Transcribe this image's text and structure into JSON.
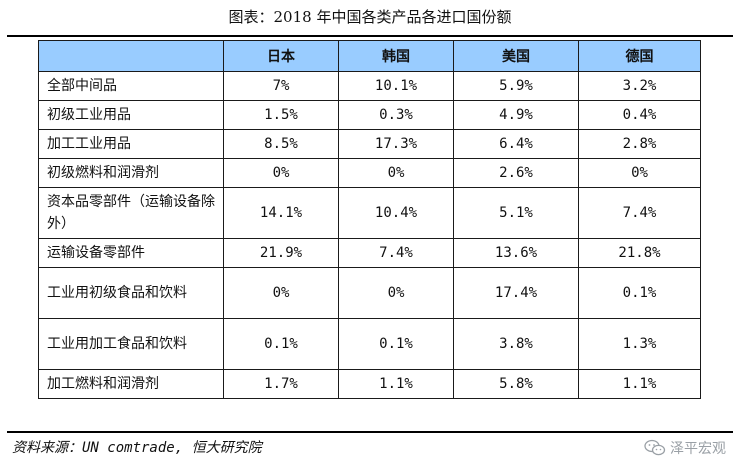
{
  "title": "图表：2018 年中国各类产品各进口国份额",
  "table": {
    "columns": [
      "日本",
      "韩国",
      "美国",
      "德国"
    ],
    "rows": [
      {
        "label": "全部中间品",
        "values": [
          "7%",
          "10.1%",
          "5.9%",
          "3.2%"
        ]
      },
      {
        "label": "初级工业用品",
        "values": [
          "1.5%",
          "0.3%",
          "4.9%",
          "0.4%"
        ]
      },
      {
        "label": "加工工业用品",
        "values": [
          "8.5%",
          "17.3%",
          "6.4%",
          "2.8%"
        ]
      },
      {
        "label": "初级燃料和润滑剂",
        "values": [
          "0%",
          "0%",
          "2.6%",
          "0%"
        ]
      },
      {
        "label": "资本品零部件（运输设备除外）",
        "values": [
          "14.1%",
          "10.4%",
          "5.1%",
          "7.4%"
        ]
      },
      {
        "label": "运输设备零部件",
        "values": [
          "21.9%",
          "7.4%",
          "13.6%",
          "21.8%"
        ]
      },
      {
        "label": "工业用初级食品和饮料",
        "values": [
          "0%",
          "0%",
          "17.4%",
          "0.1%"
        ]
      },
      {
        "label": "工业用加工食品和饮料",
        "values": [
          "0.1%",
          "0.1%",
          "3.8%",
          "1.3%"
        ]
      },
      {
        "label": "加工燃料和润滑剂",
        "values": [
          "1.7%",
          "1.1%",
          "5.8%",
          "1.1%"
        ]
      }
    ]
  },
  "source": "资料来源：UN comtrade, 恒大研究院",
  "watermark": {
    "text": "泽平宏观",
    "icon": "wechat-logo-icon"
  },
  "colors": {
    "header_bg": "#99ccff",
    "border": "#1a1a1a",
    "watermark": "#9aa0a6"
  }
}
